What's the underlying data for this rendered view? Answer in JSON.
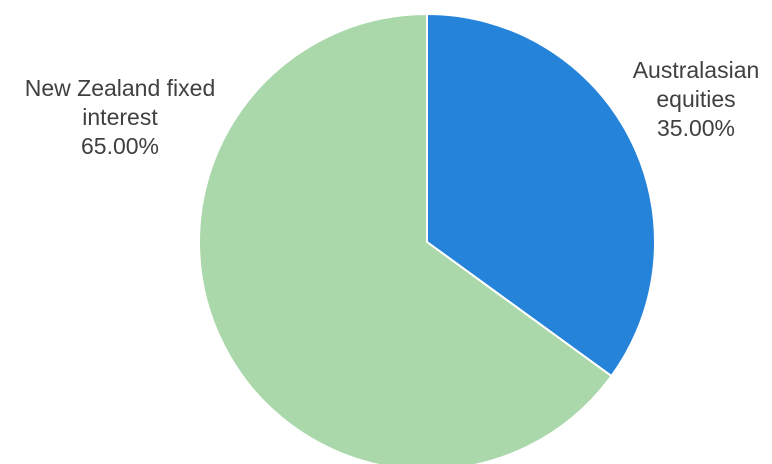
{
  "chart_data": {
    "type": "pie",
    "title": "",
    "slices": [
      {
        "name": "Australasian equities",
        "label_lines": [
          "Australasian",
          "equities"
        ],
        "value": 35.0,
        "value_label": "35.00%",
        "color": "#2683DA"
      },
      {
        "name": "New Zealand fixed interest",
        "label_lines": [
          "New Zealand fixed",
          "interest"
        ],
        "value": 65.0,
        "value_label": "65.00%",
        "color": "#ABD8AB"
      }
    ],
    "start_angle": "12 o'clock",
    "direction": "clockwise",
    "slice_border_color": "#FFFFFF",
    "legend": "none"
  }
}
